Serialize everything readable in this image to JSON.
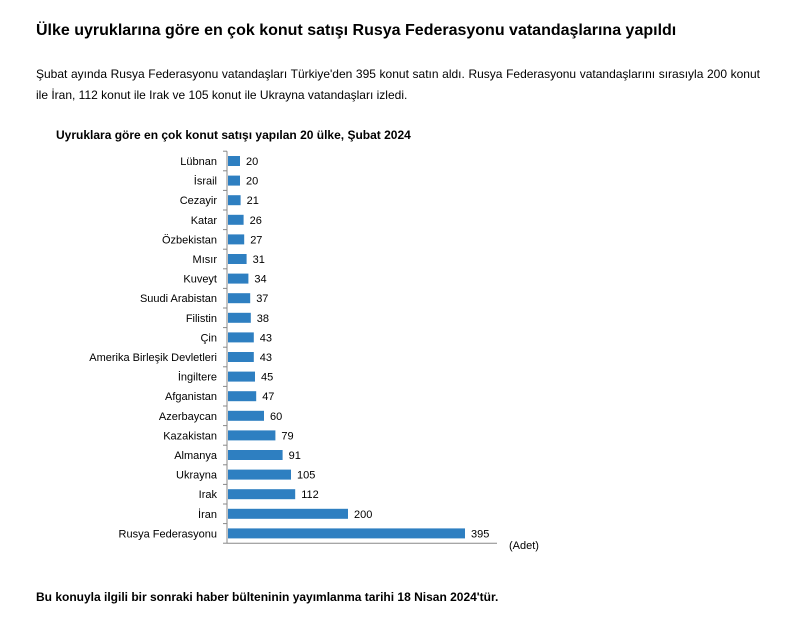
{
  "page": {
    "heading": "Ülke uyruklarına göre en çok konut satışı Rusya Federasyonu vatandaşlarına yapıldı",
    "intro": "Şubat ayında Rusya Federasyonu vatandaşları Türkiye'den 395 konut satın aldı. Rusya Federasyonu vatandaşlarını sırasıyla 200 konut ile İran, 112 konut ile Irak ve 105 konut ile Ukrayna vatandaşları izledi.",
    "footnote": "Bu konuyla ilgili bir sonraki haber bülteninin yayımlanma tarihi 18 Nisan 2024'tür."
  },
  "chart_data": {
    "type": "bar",
    "orientation": "horizontal",
    "title": "Uyruklara göre en çok konut satışı yapılan 20 ülke, Şubat 2024",
    "unit_label": "(Adet)",
    "categories": [
      "Lübnan",
      "İsrail",
      "Cezayir",
      "Katar",
      "Özbekistan",
      "Mısır",
      "Kuveyt",
      "Suudi Arabistan",
      "Filistin",
      "Çin",
      "Amerika Birleşik Devletleri",
      "İngiltere",
      "Afganistan",
      "Azerbaycan",
      "Kazakistan",
      "Almanya",
      "Ukrayna",
      "Irak",
      "İran",
      "Rusya Federasyonu"
    ],
    "values": [
      20,
      20,
      21,
      26,
      27,
      31,
      34,
      37,
      38,
      43,
      43,
      45,
      47,
      60,
      79,
      91,
      105,
      112,
      200,
      395
    ],
    "xlim": [
      0,
      450
    ],
    "bar_color": "#2e7fc1",
    "grid": false,
    "legend": "none"
  }
}
